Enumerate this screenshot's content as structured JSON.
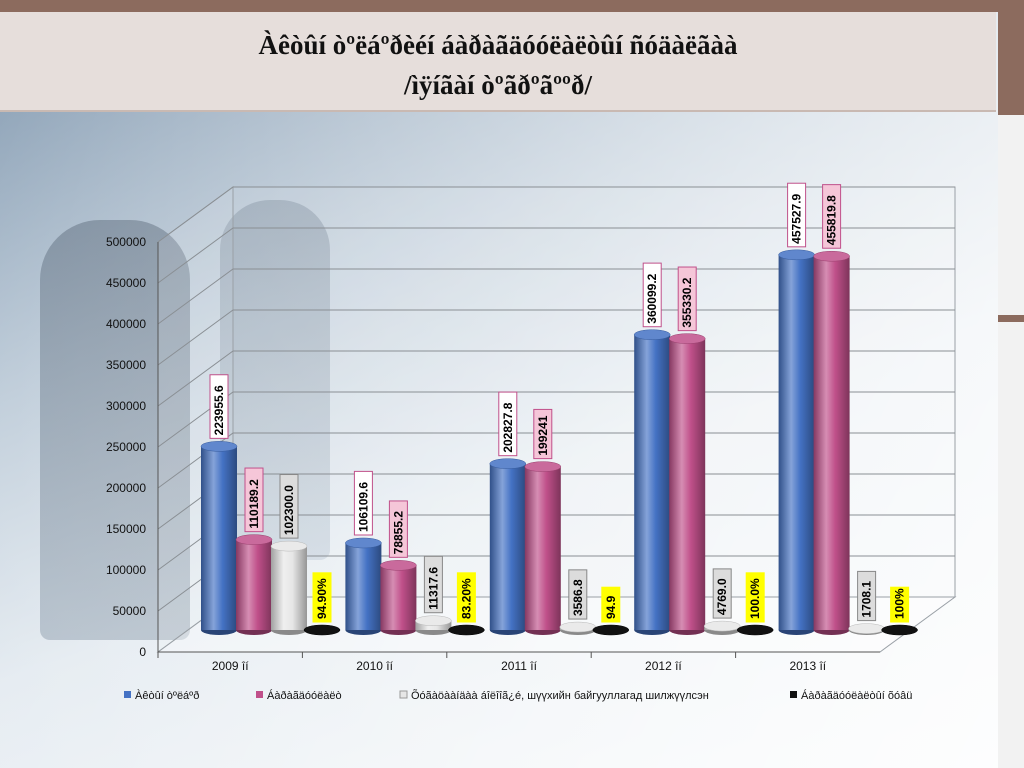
{
  "slide": {
    "title_line1": "Àêòûí òºëáºðèéí áàðàãäóóëàëòûí ñóäàëãàà",
    "title_line2": "/ìÿíãàí òºãðºãººð/"
  },
  "chart_data": {
    "type": "bar",
    "categories": [
      "2009 îí",
      "2010 îí",
      "2011 îí",
      "2012 îí",
      "2013 îí"
    ],
    "ylim": [
      0,
      500000
    ],
    "yticks": [
      0,
      50000,
      100000,
      150000,
      200000,
      250000,
      300000,
      350000,
      400000,
      450000,
      500000
    ],
    "series": [
      {
        "name": "Àêòûí òºëáºð",
        "color": "#4472c4",
        "values": [
          223955.6,
          106109.6,
          202827.8,
          360099.2,
          457527.9
        ],
        "labels": [
          "223955.6",
          "106109.6",
          "202827.8",
          "360099.2",
          "457527.9"
        ]
      },
      {
        "name": "Áàðàãäóóëàëò",
        "color": "#c0508a",
        "values": [
          110189.2,
          78855.2,
          199241,
          355330.2,
          455819.8
        ],
        "labels": [
          "110189.2",
          "78855.2",
          "199241",
          "355330.2",
          "455819.8"
        ]
      },
      {
        "name": "Õóãàöààíäàà áîëîîã¿é, шүүхийн байгууллагад шилжүүлсэн",
        "color": "#e6e6e6",
        "values": [
          102300.0,
          11317.6,
          3586.8,
          4769.0,
          1708.1
        ],
        "labels": [
          "102300.0",
          "11317.6",
          "3586.8",
          "4769.0",
          "1708.1"
        ]
      },
      {
        "name": "Áàðàãäóóëàëòûí õóâü",
        "color": "#111111",
        "values": [
          0,
          0,
          0,
          0,
          0
        ],
        "labels": [
          "94.90%",
          "83.20%",
          "94.9",
          "100.0%",
          "100%"
        ]
      }
    ],
    "legend_position": "bottom",
    "grid": true
  }
}
